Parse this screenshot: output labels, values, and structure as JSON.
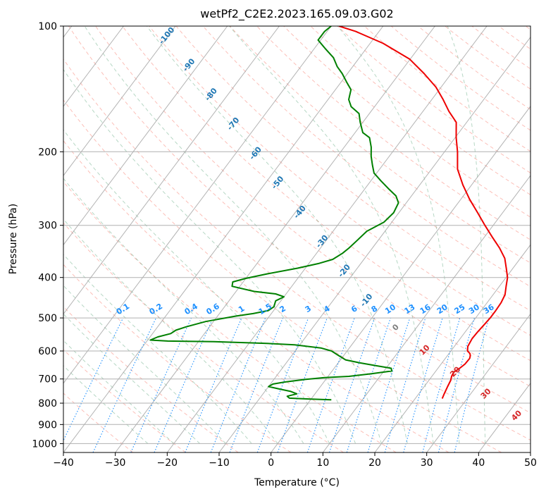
{
  "chart_data": {
    "type": "line",
    "subtype": "skew-t log-p",
    "title": "wetPf2_C2E2.2023.165.09.03.G02",
    "xlabel": "Temperature (°C)",
    "ylabel": "Pressure (hPa)",
    "xlim": [
      -40,
      50
    ],
    "ylim": [
      1050,
      100
    ],
    "yscale": "log",
    "x_ticks": [
      -40,
      -30,
      -20,
      -10,
      0,
      10,
      20,
      30,
      40,
      50
    ],
    "x_tick_labels": [
      "−40",
      "−30",
      "−20",
      "−10",
      "0",
      "10",
      "20",
      "30",
      "40",
      "50"
    ],
    "y_ticks": [
      100,
      200,
      300,
      400,
      500,
      600,
      700,
      800,
      900,
      1000
    ],
    "y_tick_labels": [
      "100",
      "200",
      "300",
      "400",
      "500",
      "600",
      "700",
      "800",
      "900",
      "1000"
    ],
    "grid": true,
    "series": [
      {
        "role": "temperature",
        "color": "#ee0000",
        "points": [
          [
            25.2,
            780
          ],
          [
            24.9,
            760
          ],
          [
            24.5,
            730
          ],
          [
            24.2,
            705
          ],
          [
            23.8,
            690
          ],
          [
            23.6,
            675
          ],
          [
            24.2,
            660
          ],
          [
            24.6,
            645
          ],
          [
            24.7,
            625
          ],
          [
            24.4,
            615
          ],
          [
            24.0,
            608
          ],
          [
            23.2,
            600
          ],
          [
            22.6,
            585
          ],
          [
            22.3,
            560
          ],
          [
            22.4,
            540
          ],
          [
            22.6,
            520
          ],
          [
            22.8,
            500
          ],
          [
            22.8,
            480
          ],
          [
            22.7,
            460
          ],
          [
            22.3,
            440
          ],
          [
            21.3,
            420
          ],
          [
            20.3,
            400
          ],
          [
            18.7,
            380
          ],
          [
            17.0,
            360
          ],
          [
            14.5,
            340
          ],
          [
            11.5,
            320
          ],
          [
            8.4,
            300
          ],
          [
            5.2,
            280
          ],
          [
            1.7,
            260
          ],
          [
            -1.7,
            240
          ],
          [
            -5.0,
            220
          ],
          [
            -7.5,
            200
          ],
          [
            -9.8,
            185
          ],
          [
            -12.0,
            170
          ],
          [
            -15.0,
            160
          ],
          [
            -17.8,
            150
          ],
          [
            -21.0,
            140
          ],
          [
            -25.2,
            130
          ],
          [
            -30.1,
            120
          ],
          [
            -37.5,
            110
          ],
          [
            -44.5,
            103
          ],
          [
            -48.5,
            100
          ]
        ]
      },
      {
        "role": "dewpoint",
        "color": "#008000",
        "points": [
          [
            4.0,
            785
          ],
          [
            0.0,
            782
          ],
          [
            -2.5,
            780
          ],
          [
            -4.3,
            778
          ],
          [
            -5.0,
            770
          ],
          [
            -3.5,
            760
          ],
          [
            -5.0,
            750
          ],
          [
            -7.5,
            740
          ],
          [
            -10.0,
            730
          ],
          [
            -9.5,
            720
          ],
          [
            -7.5,
            712
          ],
          [
            -4.0,
            702
          ],
          [
            -0.5,
            695
          ],
          [
            4.0,
            690
          ],
          [
            8.0,
            680
          ],
          [
            11.5,
            670
          ],
          [
            11.0,
            660
          ],
          [
            7.5,
            650
          ],
          [
            4.0,
            640
          ],
          [
            1.0,
            630
          ],
          [
            -1.0,
            615
          ],
          [
            -3.0,
            600
          ],
          [
            -5.5,
            590
          ],
          [
            -11.0,
            580
          ],
          [
            -17.0,
            575
          ],
          [
            -27.0,
            570
          ],
          [
            -36.0,
            568
          ],
          [
            -39.5,
            565
          ],
          [
            -38.5,
            555
          ],
          [
            -36.5,
            545
          ],
          [
            -36.0,
            535
          ],
          [
            -34.5,
            525
          ],
          [
            -31.5,
            510
          ],
          [
            -26.5,
            495
          ],
          [
            -23.5,
            488
          ],
          [
            -21.0,
            480
          ],
          [
            -20.5,
            470
          ],
          [
            -21.0,
            455
          ],
          [
            -20.0,
            445
          ],
          [
            -22.0,
            438
          ],
          [
            -26.5,
            432
          ],
          [
            -31.5,
            420
          ],
          [
            -32.0,
            410
          ],
          [
            -30.0,
            402
          ],
          [
            -26.5,
            392
          ],
          [
            -21.5,
            380
          ],
          [
            -18.0,
            370
          ],
          [
            -16.0,
            362
          ],
          [
            -15.0,
            350
          ],
          [
            -14.5,
            340
          ],
          [
            -14.0,
            325
          ],
          [
            -13.5,
            310
          ],
          [
            -11.5,
            295
          ],
          [
            -11.0,
            280
          ],
          [
            -11.5,
            265
          ],
          [
            -13.0,
            255
          ],
          [
            -15.5,
            245
          ],
          [
            -18.0,
            235
          ],
          [
            -20.5,
            225
          ],
          [
            -22.0,
            215
          ],
          [
            -23.5,
            205
          ],
          [
            -24.8,
            195
          ],
          [
            -26.5,
            185
          ],
          [
            -28.5,
            180
          ],
          [
            -30.5,
            170
          ],
          [
            -32.0,
            162
          ],
          [
            -34.5,
            156
          ],
          [
            -36.0,
            150
          ],
          [
            -37.0,
            142
          ],
          [
            -39.0,
            136
          ],
          [
            -41.0,
            130
          ],
          [
            -43.0,
            125
          ],
          [
            -45.0,
            119
          ],
          [
            -48.0,
            113
          ],
          [
            -50.5,
            108
          ],
          [
            -50.5,
            103
          ],
          [
            -50.0,
            100
          ]
        ]
      }
    ],
    "background_lines": {
      "dry_adiabats_color": "#fa8072",
      "moist_adiabats_color": "#2e8b57",
      "mixing_ratio_color": "#1e90ff",
      "isotherm_color": "#a0a0a0",
      "dry_adiabat_labels": {
        "color": "#d62728",
        "values": [
          "10",
          "20",
          "30",
          "40"
        ]
      },
      "moist_adiabat_labels": {
        "color": "#1f77b4",
        "values": [
          "-100",
          "-90",
          "-80",
          "-70",
          "-60",
          "-50",
          "-40",
          "-30",
          "-20",
          "-10"
        ]
      },
      "mixing_ratio_labels": {
        "color": "#1e90ff",
        "values": [
          "0.1",
          "0.2",
          "0.4",
          "0.6",
          "1",
          "1.5",
          "2",
          "3",
          "4",
          "6",
          "8",
          "10",
          "13",
          "16",
          "20",
          "25",
          "30",
          "36"
        ]
      },
      "zero_label": {
        "color": "#808080",
        "value": "0"
      }
    }
  }
}
